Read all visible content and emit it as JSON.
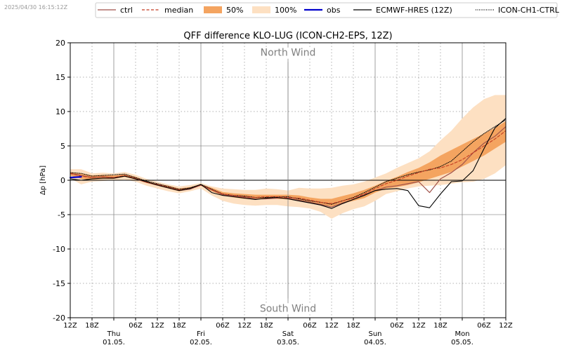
{
  "timestamp": "2025/04/30 16:15:12Z",
  "chart_data": {
    "type": "line",
    "title": "QFF difference KLO-LUG (ICON-CH2-EPS, 12Z)",
    "ylabel": "Δp [hPa]",
    "xlabel": "",
    "ylim": [
      -20,
      20
    ],
    "xlim": [
      0,
      120
    ],
    "x_unit": "hours since 30.04. 12Z",
    "yticks": [
      -20,
      -15,
      -10,
      -5,
      0,
      5,
      10,
      15,
      20
    ],
    "grid": "dotted",
    "legend_position": "top",
    "annotations": [
      {
        "text": "North Wind",
        "x": 60,
        "y": 18.6
      },
      {
        "text": "South Wind",
        "x": 60,
        "y": -18.6
      }
    ],
    "x_ticks": [
      {
        "x": 0,
        "label": "12Z"
      },
      {
        "x": 6,
        "label": "18Z"
      },
      {
        "x": 18,
        "label": "06Z"
      },
      {
        "x": 24,
        "label": "12Z"
      },
      {
        "x": 30,
        "label": "18Z"
      },
      {
        "x": 42,
        "label": "06Z"
      },
      {
        "x": 48,
        "label": "12Z"
      },
      {
        "x": 54,
        "label": "18Z"
      },
      {
        "x": 66,
        "label": "06Z"
      },
      {
        "x": 72,
        "label": "12Z"
      },
      {
        "x": 78,
        "label": "18Z"
      },
      {
        "x": 90,
        "label": "06Z"
      },
      {
        "x": 96,
        "label": "12Z"
      },
      {
        "x": 102,
        "label": "18Z"
      },
      {
        "x": 114,
        "label": "06Z"
      },
      {
        "x": 120,
        "label": "12Z"
      }
    ],
    "day_ticks": [
      {
        "x": 12,
        "day": "Thu",
        "date": "01.05."
      },
      {
        "x": 36,
        "day": "Fri",
        "date": "02.05."
      },
      {
        "x": 60,
        "day": "Sat",
        "date": "03.05."
      },
      {
        "x": 84,
        "day": "Sun",
        "date": "04.05."
      },
      {
        "x": 108,
        "day": "Mon",
        "date": "05.05."
      }
    ],
    "legend": [
      {
        "key": "ctrl",
        "label": "ctrl",
        "style": "line",
        "color": "#a0524a"
      },
      {
        "key": "median",
        "label": "median",
        "style": "dashed",
        "color": "#c23b22"
      },
      {
        "key": "p50",
        "label": "50%",
        "style": "patch",
        "color": "#f4a460"
      },
      {
        "key": "p100",
        "label": "100%",
        "style": "patch",
        "color": "#fde0c2"
      },
      {
        "key": "obs",
        "label": "obs",
        "style": "line",
        "color": "#0000cc"
      },
      {
        "key": "ecmwf",
        "label": "ECMWF-HRES (12Z)",
        "style": "line",
        "color": "#000000"
      },
      {
        "key": "iconctrl",
        "label": "ICON-CH1-CTRL (12Z)",
        "style": "dotted",
        "color": "#000000"
      }
    ],
    "x": [
      0,
      3,
      6,
      9,
      12,
      15,
      18,
      21,
      24,
      27,
      30,
      33,
      36,
      39,
      42,
      45,
      48,
      51,
      54,
      57,
      60,
      63,
      66,
      69,
      72,
      75,
      78,
      81,
      84,
      87,
      90,
      93,
      96,
      99,
      102,
      105,
      108,
      111,
      114,
      117,
      120
    ],
    "series": [
      {
        "name": "100% min",
        "values": [
          0.3,
          -0.6,
          -0.2,
          -0.1,
          0.0,
          0.1,
          -0.2,
          -0.8,
          -1.2,
          -1.6,
          -1.9,
          -1.6,
          -1.2,
          -2.2,
          -3.0,
          -3.4,
          -3.6,
          -3.7,
          -3.6,
          -3.6,
          -3.8,
          -3.9,
          -4.1,
          -4.6,
          -5.6,
          -4.8,
          -4.2,
          -3.8,
          -3.0,
          -2.0,
          -1.6,
          -1.2,
          -0.9,
          -0.8,
          -0.7,
          -0.5,
          -0.3,
          -0.2,
          0.2,
          1.0,
          2.2
        ]
      },
      {
        "name": "25%",
        "values": [
          0.7,
          0.2,
          0.1,
          0.2,
          0.2,
          0.5,
          0.1,
          -0.4,
          -0.8,
          -1.2,
          -1.6,
          -1.3,
          -0.8,
          -1.6,
          -2.2,
          -2.5,
          -2.7,
          -2.8,
          -2.7,
          -2.7,
          -2.8,
          -3.0,
          -3.3,
          -3.5,
          -3.8,
          -3.4,
          -3.0,
          -2.6,
          -1.8,
          -1.2,
          -1.0,
          -0.7,
          -0.3,
          0.2,
          0.7,
          1.2,
          2.0,
          2.8,
          3.6,
          4.6,
          5.6
        ]
      },
      {
        "name": "median",
        "values": [
          1.0,
          0.6,
          0.4,
          0.5,
          0.4,
          0.7,
          0.3,
          -0.3,
          -0.6,
          -1.0,
          -1.4,
          -1.2,
          -0.7,
          -1.4,
          -2.0,
          -2.2,
          -2.4,
          -2.5,
          -2.4,
          -2.4,
          -2.5,
          -2.6,
          -2.9,
          -3.2,
          -3.4,
          -3.0,
          -2.6,
          -2.0,
          -1.2,
          -0.5,
          0.0,
          0.6,
          1.1,
          1.6,
          1.8,
          2.3,
          3.0,
          4.0,
          5.0,
          6.0,
          7.2
        ]
      },
      {
        "name": "75%",
        "values": [
          1.2,
          1.0,
          0.7,
          0.8,
          0.7,
          0.9,
          0.5,
          -0.1,
          -0.5,
          -0.8,
          -1.2,
          -1.0,
          -0.6,
          -1.1,
          -1.7,
          -1.9,
          -2.0,
          -2.1,
          -2.1,
          -2.1,
          -2.1,
          -2.2,
          -2.5,
          -2.7,
          -2.7,
          -2.3,
          -1.9,
          -1.4,
          -0.8,
          -0.1,
          0.5,
          1.2,
          1.8,
          2.6,
          3.6,
          4.4,
          5.2,
          6.0,
          6.8,
          7.6,
          8.6
        ]
      },
      {
        "name": "100% max",
        "values": [
          1.6,
          1.6,
          1.0,
          1.1,
          1.0,
          1.2,
          0.8,
          0.2,
          -0.2,
          -0.6,
          -0.9,
          -0.7,
          -0.4,
          -0.9,
          -1.2,
          -1.3,
          -1.4,
          -1.4,
          -1.2,
          -1.3,
          -1.5,
          -1.1,
          -1.2,
          -1.2,
          -1.1,
          -0.8,
          -0.6,
          -0.2,
          0.4,
          1.0,
          1.8,
          2.5,
          3.2,
          4.2,
          5.8,
          7.2,
          9.0,
          10.6,
          11.8,
          12.4,
          12.4
        ]
      },
      {
        "name": "ctrl",
        "values": [
          1.0,
          0.7,
          0.4,
          0.5,
          0.4,
          0.6,
          0.2,
          -0.3,
          -0.7,
          -1.1,
          -1.5,
          -1.3,
          -0.7,
          -1.4,
          -2.1,
          -2.3,
          -2.5,
          -2.7,
          -2.7,
          -2.6,
          -2.6,
          -2.9,
          -3.2,
          -3.5,
          -3.9,
          -3.3,
          -2.8,
          -2.1,
          -1.5,
          -1.0,
          -0.8,
          -0.5,
          -0.2,
          -1.8,
          0.2,
          1.1,
          2.3,
          4.0,
          5.4,
          6.4,
          7.8
        ]
      },
      {
        "name": "obs",
        "values": [
          0.4,
          0.5,
          null,
          null,
          null,
          null,
          null,
          null,
          null,
          null,
          null,
          null,
          null,
          null,
          null,
          null,
          null,
          null,
          null,
          null,
          null,
          null,
          null,
          null,
          null,
          null,
          null,
          null,
          null,
          null,
          null,
          null,
          null,
          null,
          null,
          null,
          null,
          null,
          null,
          null,
          null
        ]
      },
      {
        "name": "ECMWF-HRES (12Z)",
        "values": [
          0.2,
          0.0,
          0.2,
          0.3,
          0.3,
          0.6,
          0.2,
          -0.2,
          -0.7,
          -1.1,
          -1.5,
          -1.2,
          -0.6,
          -1.8,
          -2.2,
          -2.4,
          -2.6,
          -2.8,
          -2.6,
          -2.5,
          -2.7,
          -3.0,
          -3.3,
          -3.6,
          -4.1,
          -3.4,
          -2.8,
          -2.2,
          -1.5,
          -1.3,
          -1.2,
          -1.5,
          -3.7,
          -4.0,
          -2.0,
          -0.2,
          -0.1,
          1.4,
          4.6,
          7.6,
          9.0
        ]
      },
      {
        "name": "ICON-CH1-CTRL (12Z)",
        "values": [
          1.1,
          1.0,
          0.6,
          0.7,
          0.8,
          0.9,
          0.4,
          -0.1,
          -0.5,
          -0.9,
          -1.3,
          -1.1,
          -0.6,
          -1.3,
          -2.0,
          -2.2,
          -2.3,
          -2.5,
          -2.5,
          -2.4,
          -2.4,
          -2.7,
          -3.0,
          -3.2,
          -3.5,
          -3.0,
          -2.5,
          -1.8,
          -1.0,
          -0.2,
          0.3,
          0.8,
          1.2,
          1.5,
          2.0,
          2.8,
          4.2,
          5.6,
          6.8,
          7.8,
          8.8
        ]
      }
    ]
  }
}
